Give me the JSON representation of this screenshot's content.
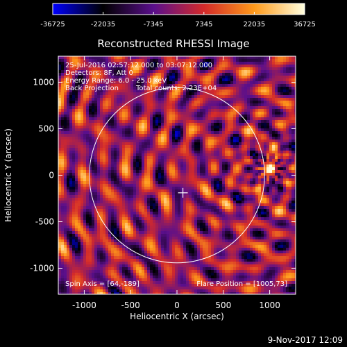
{
  "chart_data": {
    "type": "heatmap",
    "title": "Reconstructed RHESSI Image",
    "xlabel": "Heliocentric X (arcsec)",
    "ylabel": "Heliocentric Y (arcsec)",
    "xlim": [
      -1280,
      1280
    ],
    "ylim": [
      -1280,
      1280
    ],
    "xticks": [
      -1000,
      -500,
      0,
      500,
      1000
    ],
    "yticks": [
      -1000,
      -500,
      0,
      500,
      1000
    ],
    "colorbar": {
      "min": -36725,
      "max": 36725,
      "ticks": [
        -36725,
        -22035,
        -7345,
        7345,
        22035,
        36725
      ],
      "colormap": [
        "#0000ff",
        "#000000",
        "#5a0f8c",
        "#d42a2a",
        "#ff9a1a",
        "#ffffe0"
      ]
    },
    "annotations": [
      "25-Jul-2016 02:57:12.000 to 03:07:12.000",
      "Detectors: 8F, Att 0",
      "Energy Range: 6.0 - 25.0 keV",
      "Back Projection",
      "Total counts: 2.23E+04"
    ],
    "spin_axis_label": "Spin Axis = [64,-189]",
    "flare_position_label": "Flare Position = [1005,73]",
    "flare_position": [
      1005,
      73
    ],
    "solar_limb_radius": 945,
    "sun_center": [
      0,
      0
    ],
    "spin_axis_marker": [
      64,
      -189
    ],
    "date_stamp": "9-Nov-2017 12:09"
  }
}
